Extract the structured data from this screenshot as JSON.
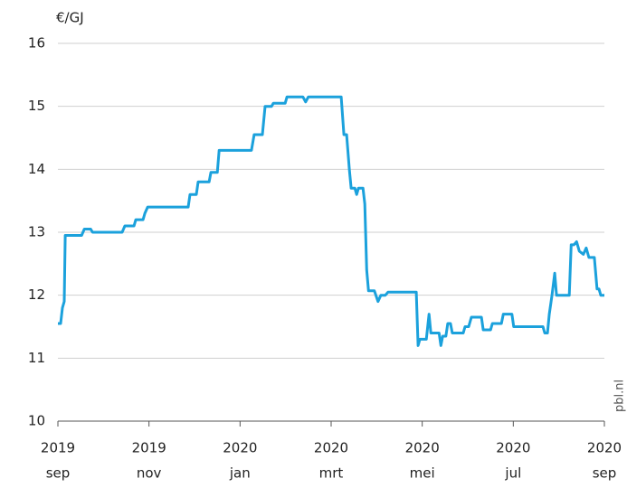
{
  "chart_data": {
    "type": "line",
    "y_label": "€/GJ",
    "source": "pbl.nl",
    "xlim": [
      0,
      12
    ],
    "xticks": [
      {
        "value": 0,
        "label": "2019",
        "month": "sep"
      },
      {
        "value": 2,
        "label": "2019",
        "month": "nov"
      },
      {
        "value": 4,
        "label": "2020",
        "month": "jan"
      },
      {
        "value": 6,
        "label": "2020",
        "month": "mrt"
      },
      {
        "value": 8,
        "label": "2020",
        "month": "mei"
      },
      {
        "value": 10,
        "label": "2020",
        "month": "jul"
      },
      {
        "value": 12,
        "label": "2020",
        "month": "sep"
      }
    ],
    "ylim": [
      10,
      16
    ],
    "yticks": [
      10,
      11,
      12,
      13,
      14,
      15,
      16
    ],
    "grid": true,
    "x": [
      0,
      0.06,
      0.1,
      0.14,
      0.16,
      0.52,
      0.58,
      0.72,
      0.76,
      1.41,
      1.47,
      1.67,
      1.71,
      1.87,
      1.91,
      1.97,
      2.86,
      2.9,
      3.04,
      3.08,
      3.32,
      3.36,
      3.5,
      3.54,
      4.25,
      4.31,
      4.49,
      4.55,
      4.69,
      4.73,
      4.99,
      5.03,
      5.38,
      5.44,
      5.5,
      6.22,
      6.28,
      6.34,
      6.4,
      6.44,
      6.52,
      6.56,
      6.6,
      6.7,
      6.74,
      6.78,
      6.82,
      6.95,
      7.03,
      7.09,
      7.19,
      7.25,
      7.87,
      7.91,
      7.95,
      8.09,
      8.15,
      8.19,
      8.37,
      8.41,
      8.45,
      8.52,
      8.56,
      8.62,
      8.66,
      8.9,
      8.94,
      9.02,
      9.08,
      9.3,
      9.34,
      9.5,
      9.54,
      9.74,
      9.78,
      9.97,
      10.01,
      10.65,
      10.69,
      10.75,
      10.79,
      10.85,
      10.91,
      10.95,
      11.23,
      11.27,
      11.33,
      11.39,
      11.45,
      11.54,
      11.6,
      11.66,
      11.78,
      11.84,
      11.88,
      11.92,
      12.0
    ],
    "series": [
      {
        "color": "#1ba1dc",
        "values": [
          11.55,
          11.55,
          11.8,
          11.9,
          12.95,
          12.95,
          13.05,
          13.05,
          13.0,
          13.0,
          13.1,
          13.1,
          13.2,
          13.2,
          13.3,
          13.4,
          13.4,
          13.6,
          13.6,
          13.8,
          13.8,
          13.95,
          13.95,
          14.3,
          14.3,
          14.55,
          14.55,
          15.0,
          15.0,
          15.05,
          15.05,
          15.15,
          15.15,
          15.07,
          15.15,
          15.15,
          14.55,
          14.55,
          14.0,
          13.7,
          13.7,
          13.6,
          13.7,
          13.7,
          13.45,
          12.4,
          12.07,
          12.07,
          11.9,
          12.0,
          12.0,
          12.05,
          12.05,
          11.2,
          11.3,
          11.3,
          11.7,
          11.4,
          11.4,
          11.2,
          11.35,
          11.35,
          11.55,
          11.55,
          11.4,
          11.4,
          11.5,
          11.5,
          11.65,
          11.65,
          11.45,
          11.45,
          11.55,
          11.55,
          11.7,
          11.7,
          11.5,
          11.5,
          11.4,
          11.4,
          11.7,
          12.0,
          12.35,
          12.0,
          12.0,
          12.8,
          12.8,
          12.85,
          12.7,
          12.65,
          12.75,
          12.6,
          12.6,
          12.1,
          12.1,
          12.0,
          12.0
        ]
      }
    ]
  }
}
